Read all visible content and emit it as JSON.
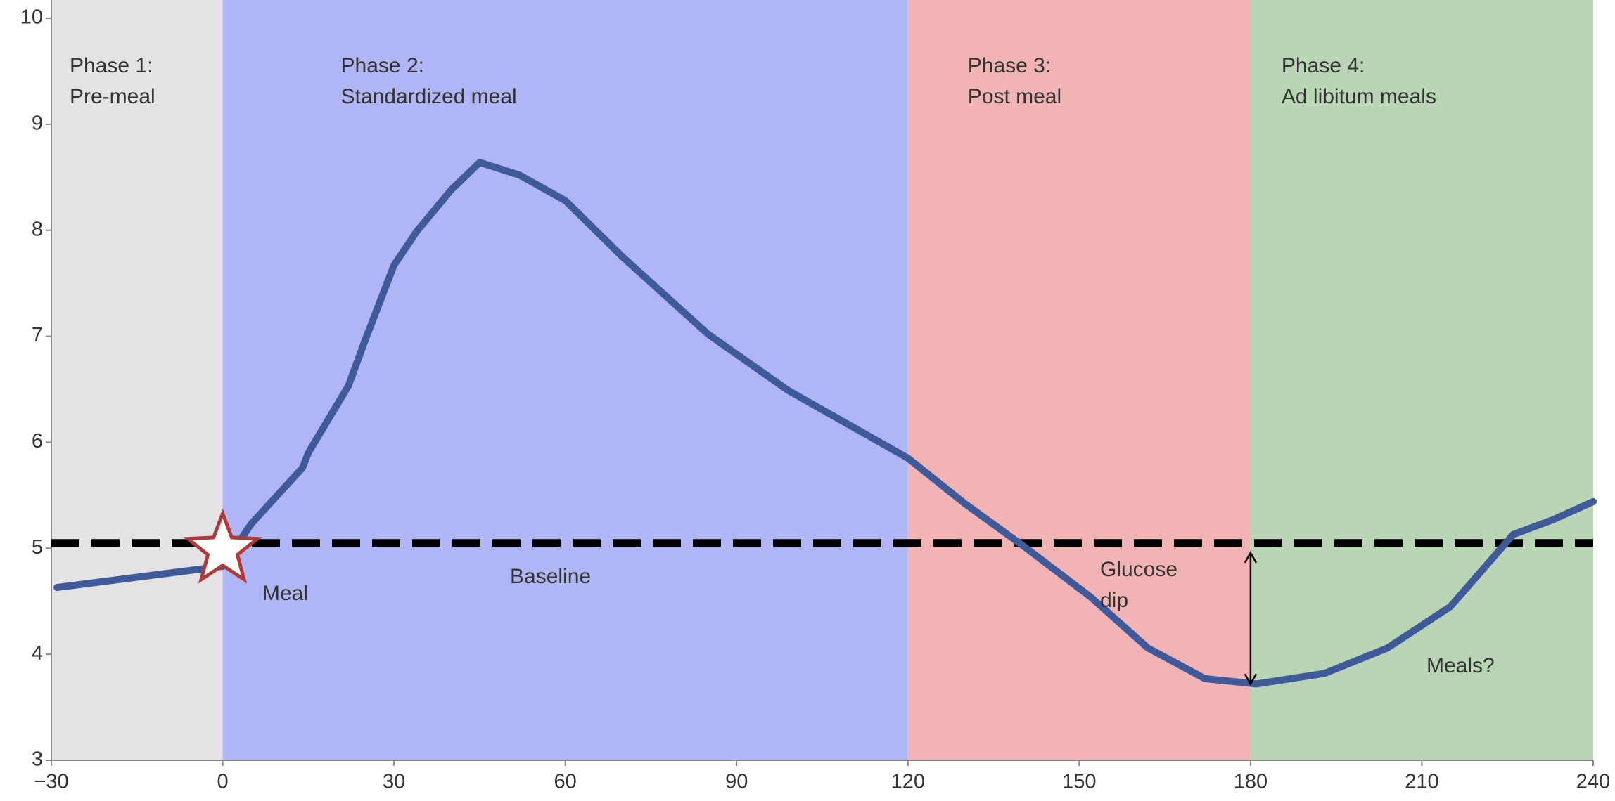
{
  "chart_data": {
    "type": "line",
    "x": [
      -29,
      0,
      5,
      14,
      15,
      22,
      25,
      30,
      34,
      40,
      45,
      52,
      60,
      70,
      85,
      99,
      120,
      130,
      140,
      152,
      162,
      172,
      181,
      193,
      204,
      215,
      226,
      233,
      240
    ],
    "series": [
      {
        "color": "#3f5a9a",
        "values": [
          4.63,
          4.83,
          5.23,
          5.76,
          5.9,
          6.53,
          6.97,
          7.67,
          7.99,
          8.38,
          8.64,
          8.52,
          8.28,
          7.75,
          7.02,
          6.49,
          5.85,
          5.42,
          5.03,
          4.54,
          4.06,
          3.77,
          3.72,
          3.82,
          4.06,
          4.45,
          5.13,
          5.27,
          5.44
        ]
      }
    ],
    "xlim": [
      -30,
      240
    ],
    "xticks": [
      {
        "value": -30,
        "label": "−30"
      },
      0,
      30,
      60,
      90,
      120,
      150,
      180,
      210,
      240
    ],
    "ylim": [
      3,
      10
    ],
    "yticks": [
      3,
      4,
      5,
      6,
      7,
      8,
      9,
      10
    ],
    "phases": [
      {
        "start": -30,
        "end": 0,
        "color": "#e4e2e3",
        "label": [
          "Phase 1:",
          "Pre-meal"
        ]
      },
      {
        "start": 0,
        "end": 120,
        "color": "#b0b5f5",
        "label": [
          "Phase 2:",
          "Standardized meal"
        ]
      },
      {
        "start": 120,
        "end": 180,
        "color": "#f2b3b4",
        "label": [
          "Phase 3:",
          "Post meal"
        ]
      },
      {
        "start": 180,
        "end": 240,
        "color": "#b9d5b5",
        "label": [
          "Phase 4:",
          "Ad libitum meals"
        ]
      }
    ],
    "baseline": 5.05,
    "annotations": {
      "meal": "Meal",
      "baseline": "Baseline",
      "dip": [
        "Glucose",
        "dip"
      ],
      "meals": "Meals?"
    }
  }
}
